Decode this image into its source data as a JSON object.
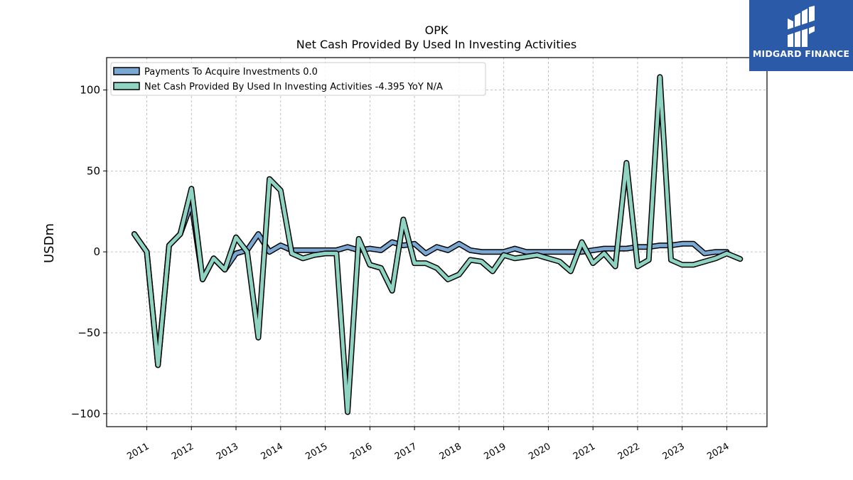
{
  "brand": {
    "name": "MIDGARD FINANCE",
    "bg_color": "#2a5aa8"
  },
  "chart_data": {
    "type": "line",
    "title": "OPK",
    "subtitle": "Net Cash Provided By Used In Investing Activities",
    "xlabel": "",
    "ylabel": "USDm",
    "xlim": [
      2010.1,
      2024.9
    ],
    "ylim": [
      -108,
      120
    ],
    "yticks": [
      -100,
      -50,
      0,
      50,
      100
    ],
    "ytick_labels": [
      "−100",
      "−50",
      "0",
      "50",
      "100"
    ],
    "xticks": [
      2011,
      2012,
      2013,
      2014,
      2015,
      2016,
      2017,
      2018,
      2019,
      2020,
      2021,
      2022,
      2023,
      2024
    ],
    "xtick_labels": [
      "2011",
      "2012",
      "2013",
      "2014",
      "2015",
      "2016",
      "2017",
      "2018",
      "2019",
      "2020",
      "2021",
      "2022",
      "2023",
      "2024"
    ],
    "grid": true,
    "legend_position": "top-left",
    "legend": [
      "Payments To Acquire Investments  0.0",
      "Net Cash Provided By Used In Investing Activities  -4.395 YoY N/A"
    ],
    "series": [
      {
        "name": "Payments To Acquire Investments",
        "color": "#7ba7d3",
        "x": [
          2010.72,
          2011.0,
          2011.25,
          2011.5,
          2011.75,
          2012.0,
          2012.25,
          2012.5,
          2012.75,
          2013.0,
          2013.25,
          2013.5,
          2013.75,
          2014.0,
          2014.25,
          2014.5,
          2014.75,
          2015.0,
          2015.25,
          2015.5,
          2015.75,
          2016.0,
          2016.25,
          2016.5,
          2016.75,
          2017.0,
          2017.25,
          2017.5,
          2017.75,
          2018.0,
          2018.25,
          2018.5,
          2018.75,
          2019.0,
          2019.25,
          2019.5,
          2019.75,
          2020.0,
          2020.25,
          2020.5,
          2020.75,
          2021.0,
          2021.25,
          2021.5,
          2021.75,
          2022.0,
          2022.25,
          2022.5,
          2022.75,
          2023.0,
          2023.25,
          2023.5,
          2023.75,
          2024.0
        ],
        "values": [
          11,
          0,
          -70,
          4,
          11,
          30,
          -17,
          -4,
          -11,
          -1,
          1,
          11,
          0,
          4,
          1,
          1,
          1,
          1,
          1,
          3,
          1,
          2,
          1,
          6,
          4,
          5,
          -1,
          3,
          1,
          5,
          1,
          0,
          0,
          0,
          2,
          0,
          0,
          0,
          0,
          0,
          0,
          1,
          2,
          2,
          2,
          3,
          3,
          4,
          4,
          5,
          5,
          -1,
          0,
          0
        ]
      },
      {
        "name": "Net Cash Provided By Used In Investing Activities",
        "color": "#8fd3c3",
        "x": [
          2010.72,
          2011.0,
          2011.25,
          2011.5,
          2011.75,
          2012.0,
          2012.25,
          2012.5,
          2012.75,
          2013.0,
          2013.25,
          2013.5,
          2013.75,
          2014.0,
          2014.25,
          2014.5,
          2014.75,
          2015.0,
          2015.25,
          2015.5,
          2015.75,
          2016.0,
          2016.25,
          2016.5,
          2016.75,
          2017.0,
          2017.25,
          2017.5,
          2017.75,
          2018.0,
          2018.25,
          2018.5,
          2018.75,
          2019.0,
          2019.25,
          2019.5,
          2019.75,
          2020.0,
          2020.25,
          2020.5,
          2020.75,
          2021.0,
          2021.25,
          2021.5,
          2021.75,
          2022.0,
          2022.25,
          2022.5,
          2022.75,
          2023.0,
          2023.25,
          2023.5,
          2023.75,
          2024.0,
          2024.3
        ],
        "values": [
          11,
          0,
          -70,
          4,
          11,
          39,
          -17,
          -4,
          -11,
          9,
          0,
          -53,
          45,
          38,
          -1,
          -4,
          -2,
          -1,
          -1,
          -99,
          8,
          -8,
          -10,
          -24,
          20,
          -7,
          -7,
          -10,
          -17,
          -14,
          -5,
          -6,
          -12,
          -2,
          -4,
          -3,
          -2,
          -4,
          -6,
          -12,
          6,
          -7,
          -1,
          -9,
          55,
          -9,
          -5,
          108,
          -5,
          -8,
          -8,
          -6,
          -4,
          -1,
          -4.395
        ]
      }
    ]
  }
}
